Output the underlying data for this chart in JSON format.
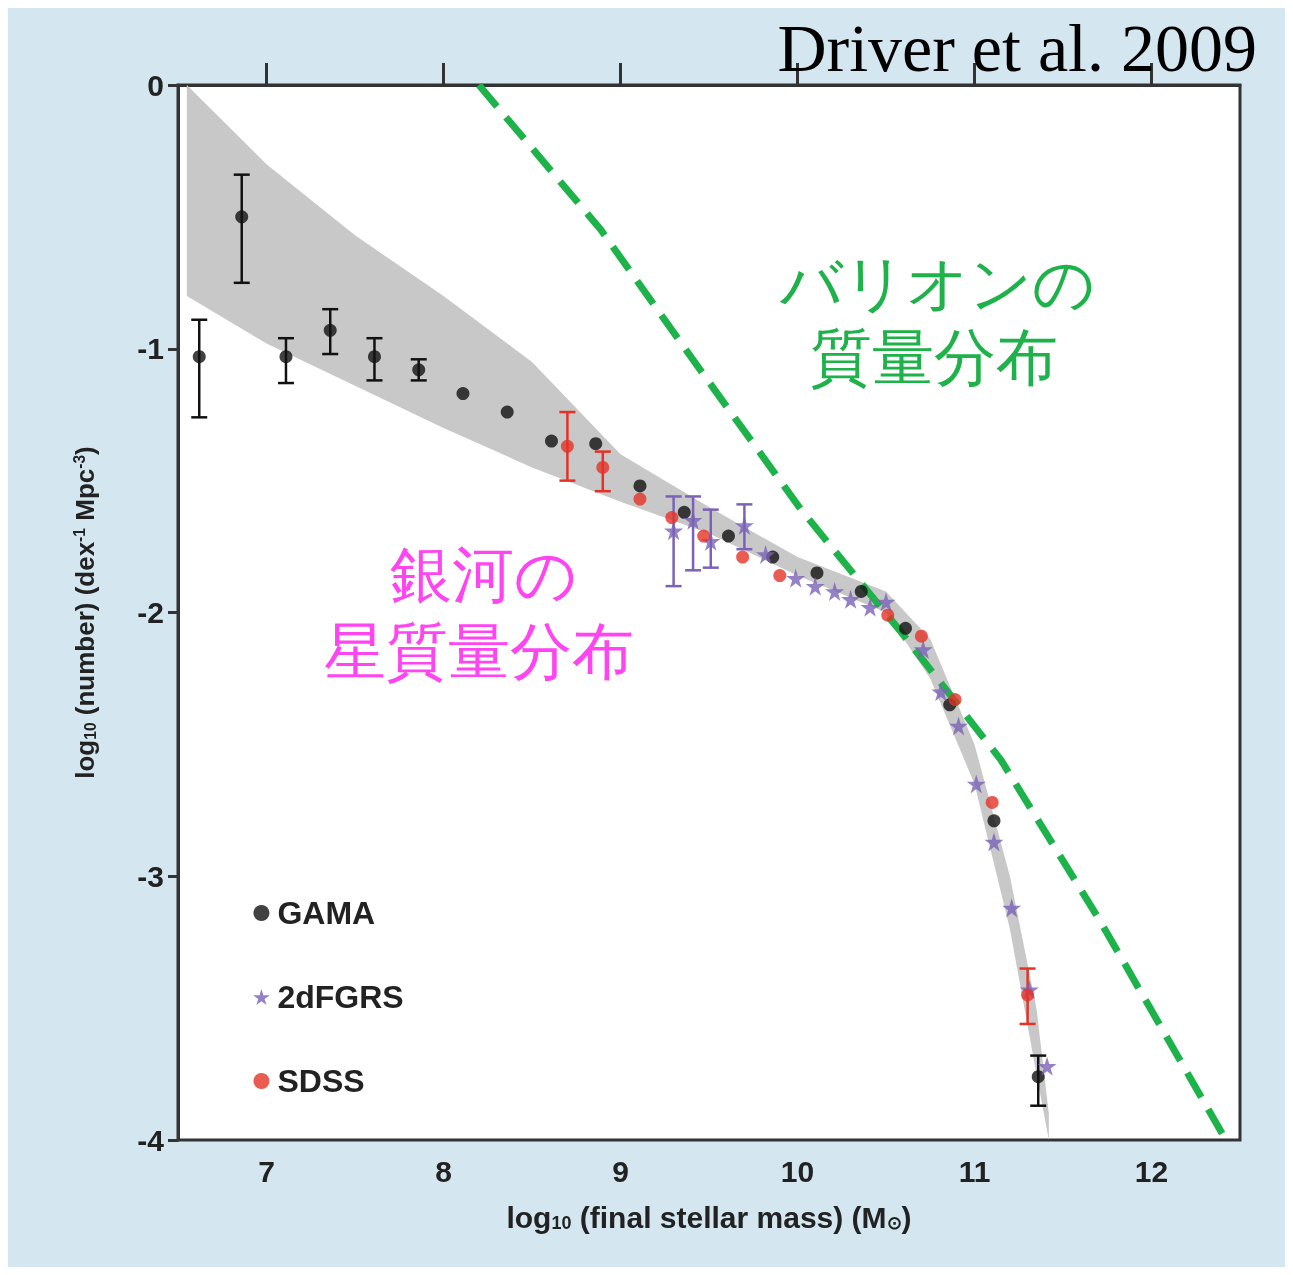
{
  "chart_data": {
    "type": "scatter",
    "xlabel": "log$_{10}$ (final stellar mass) (M$_{⊙}$)",
    "ylabel": "log$_{10}$ (number) (dex$^{-1}$ Mpc$^{-3}$)",
    "annotations": [
      "Driver et al. 2009",
      "バリオンの",
      "質量分布",
      "銀河の",
      "星質量分布"
    ],
    "xlim": [
      6.5,
      12.5
    ],
    "xticks": [
      7,
      8,
      9,
      10,
      11,
      12
    ],
    "ylim": [
      -4,
      0
    ],
    "yticks": [
      -4,
      -3,
      -2,
      -1,
      0
    ],
    "grid": false,
    "legend": "bottom left",
    "series": [
      {
        "type": "area",
        "color": "#c8c8c8",
        "x": [
          6.55,
          7,
          7.5,
          8,
          8.5,
          9,
          9.5,
          10,
          10.5,
          10.75,
          11,
          11.2,
          11.35,
          11.42
        ],
        "values": [
          null,
          null,
          null,
          null,
          null,
          null,
          null,
          null,
          null,
          null,
          null,
          null,
          null,
          null
        ],
        "lower": [
          -0.8,
          -0.98,
          -1.14,
          -1.3,
          -1.45,
          -1.58,
          -1.7,
          -1.86,
          -2.0,
          -2.25,
          -2.65,
          -3.2,
          -3.75,
          -4.0
        ],
        "upper": [
          0,
          -0.3,
          -0.57,
          -0.8,
          -1.05,
          -1.4,
          -1.6,
          -1.79,
          -1.92,
          -2.1,
          -2.5,
          -3.0,
          -3.5,
          -3.9
        ]
      },
      {
        "type": "line",
        "color": "#1db34a",
        "line_style": "dashed",
        "marker": "none",
        "x": [
          8.2,
          8.89,
          9.45,
          10.02,
          10.58,
          11.15,
          11.71,
          12.42
        ],
        "values": [
          0,
          -0.55,
          -1.08,
          -1.61,
          -2.07,
          -2.56,
          -3.17,
          -4.0
        ]
      },
      {
        "name": "GAMA",
        "color": "#111111",
        "marker": "circle",
        "x": [
          6.62,
          6.86,
          7.11,
          7.36,
          7.61,
          7.86,
          8.11,
          8.36,
          8.61,
          8.86,
          9.11,
          9.36,
          9.61,
          9.86,
          10.11,
          10.36,
          10.61,
          10.86,
          11.11,
          11.36
        ],
        "values": [
          -1.03,
          -0.5,
          -1.03,
          -0.93,
          -1.03,
          -1.08,
          -1.17,
          -1.24,
          -1.35,
          -1.36,
          -1.52,
          -1.62,
          -1.71,
          -1.79,
          -1.85,
          -1.92,
          -2.06,
          -2.35,
          -2.79,
          -3.76
        ],
        "errors": [
          [
            -1.26,
            -0.89
          ],
          [
            -0.75,
            -0.34
          ],
          [
            -1.13,
            -0.96
          ],
          [
            -1.02,
            -0.85
          ],
          [
            -1.12,
            -0.96
          ],
          [
            -1.12,
            -1.04
          ],
          null,
          null,
          null,
          null,
          null,
          null,
          null,
          null,
          null,
          null,
          null,
          null,
          null,
          [
            -3.87,
            -3.68
          ]
        ]
      },
      {
        "name": "2dFGRS",
        "color": "#7b62b8",
        "marker": "star",
        "x": [
          9.3,
          9.41,
          9.51,
          9.7,
          9.82,
          9.99,
          10.1,
          10.21,
          10.3,
          10.41,
          10.5,
          10.71,
          10.81,
          10.91,
          11.01,
          11.11,
          11.21,
          11.31,
          11.41
        ],
        "values": [
          -1.69,
          -1.65,
          -1.73,
          -1.67,
          -1.78,
          -1.87,
          -1.9,
          -1.92,
          -1.95,
          -1.98,
          -1.96,
          -2.14,
          -2.3,
          -2.43,
          -2.65,
          -2.87,
          -3.12,
          -3.43,
          -3.72
        ],
        "errors": [
          [
            -1.9,
            -1.56
          ],
          [
            -1.84,
            -1.56
          ],
          [
            -1.83,
            -1.61
          ],
          [
            -1.76,
            -1.59
          ],
          null,
          null,
          null,
          null,
          null,
          null,
          null,
          null,
          null,
          null,
          null,
          null,
          null,
          null,
          null
        ]
      },
      {
        "name": "SDSS",
        "color": "#e53227",
        "marker": "circle",
        "x": [
          8.7,
          8.9,
          9.11,
          9.29,
          9.47,
          9.69,
          9.9,
          10.51,
          10.7,
          10.89,
          11.1,
          11.3
        ],
        "values": [
          -1.37,
          -1.45,
          -1.57,
          -1.64,
          -1.71,
          -1.79,
          -1.86,
          -2.01,
          -2.09,
          -2.33,
          -2.72,
          -3.45
        ],
        "errors": [
          [
            -1.5,
            -1.24
          ],
          [
            -1.54,
            -1.39
          ],
          null,
          null,
          null,
          null,
          null,
          null,
          null,
          null,
          null,
          [
            -3.56,
            -3.35
          ]
        ]
      }
    ]
  }
}
